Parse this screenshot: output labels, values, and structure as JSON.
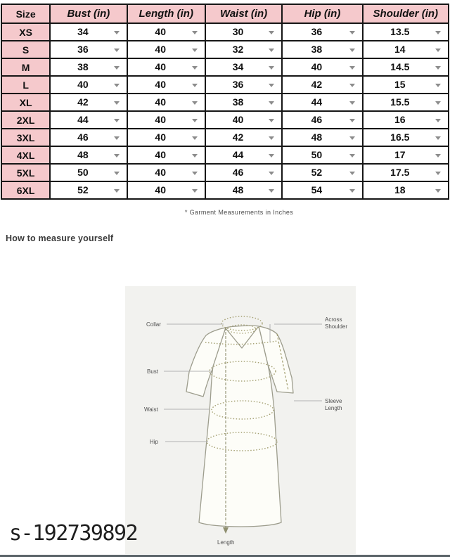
{
  "table": {
    "columns": [
      "Size",
      "Bust (in)",
      "Length (in)",
      "Waist (in)",
      "Hip (in)",
      "Shoulder (in)"
    ],
    "rows": [
      {
        "size": "XS",
        "values": [
          "34",
          "40",
          "30",
          "36",
          "13.5"
        ]
      },
      {
        "size": "S",
        "values": [
          "36",
          "40",
          "32",
          "38",
          "14"
        ]
      },
      {
        "size": "M",
        "values": [
          "38",
          "40",
          "34",
          "40",
          "14.5"
        ]
      },
      {
        "size": "L",
        "values": [
          "40",
          "40",
          "36",
          "42",
          "15"
        ]
      },
      {
        "size": "XL",
        "values": [
          "42",
          "40",
          "38",
          "44",
          "15.5"
        ]
      },
      {
        "size": "2XL",
        "values": [
          "44",
          "40",
          "40",
          "46",
          "16"
        ]
      },
      {
        "size": "3XL",
        "values": [
          "46",
          "40",
          "42",
          "48",
          "16.5"
        ]
      },
      {
        "size": "4XL",
        "values": [
          "48",
          "40",
          "44",
          "50",
          "17"
        ]
      },
      {
        "size": "5XL",
        "values": [
          "50",
          "40",
          "46",
          "52",
          "17.5"
        ]
      },
      {
        "size": "6XL",
        "values": [
          "52",
          "40",
          "48",
          "54",
          "18"
        ]
      }
    ],
    "footnote": "* Garment Measurements in Inches"
  },
  "section": {
    "heading": "How to measure yourself"
  },
  "diagram": {
    "labels": {
      "collar": "Collar",
      "across_shoulder": [
        "Across",
        "Shoulder"
      ],
      "bust": "Bust",
      "waist": "Waist",
      "sleeve_length": [
        "Sleeve",
        "Length"
      ],
      "hip": "Hip",
      "length": "Length"
    }
  },
  "watermark": "s-192739892",
  "colors": {
    "header_pink": "#f5c9cc",
    "table_border": "#161616",
    "diagram_background": "#f2f2ef",
    "measurement_olive": "#a4a072",
    "bottom_rule_gray": "#5d666b"
  }
}
